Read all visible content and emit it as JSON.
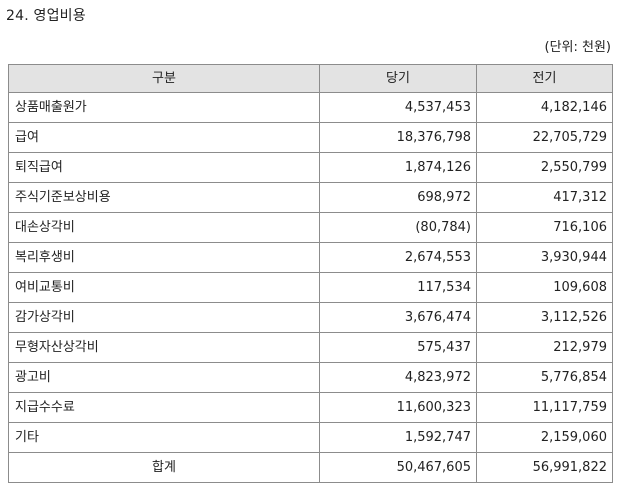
{
  "section_title": "24. 영업비용",
  "unit_label": "(단위: 천원)",
  "headers": {
    "category": "구분",
    "current": "당기",
    "prior": "전기"
  },
  "rows": [
    {
      "label": "상품매출원가",
      "current": "4,537,453",
      "prior": "4,182,146"
    },
    {
      "label": "급여",
      "current": "18,376,798",
      "prior": "22,705,729"
    },
    {
      "label": "퇴직급여",
      "current": "1,874,126",
      "prior": "2,550,799"
    },
    {
      "label": "주식기준보상비용",
      "current": "698,972",
      "prior": "417,312"
    },
    {
      "label": "대손상각비",
      "current": "(80,784)",
      "prior": "716,106"
    },
    {
      "label": "복리후생비",
      "current": "2,674,553",
      "prior": "3,930,944"
    },
    {
      "label": "여비교통비",
      "current": "117,534",
      "prior": "109,608"
    },
    {
      "label": "감가상각비",
      "current": "3,676,474",
      "prior": "3,112,526"
    },
    {
      "label": "무형자산상각비",
      "current": "575,437",
      "prior": "212,979"
    },
    {
      "label": "광고비",
      "current": "4,823,972",
      "prior": "5,776,854"
    },
    {
      "label": "지급수수료",
      "current": "11,600,323",
      "prior": "11,117,759"
    },
    {
      "label": "기타",
      "current": "1,592,747",
      "prior": "2,159,060"
    }
  ],
  "total": {
    "label": "합계",
    "current": "50,467,605",
    "prior": "56,991,822"
  }
}
